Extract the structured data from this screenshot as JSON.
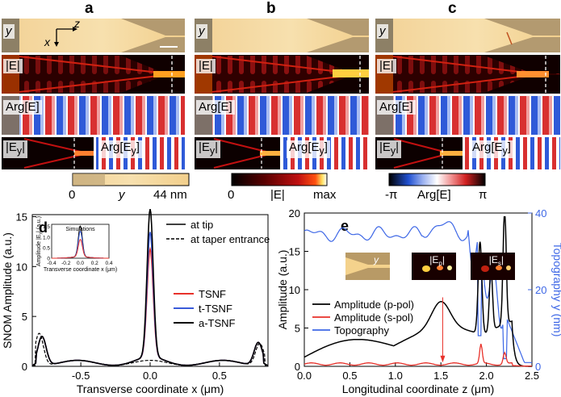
{
  "panel_letters": {
    "a": "a",
    "b": "b",
    "c": "c"
  },
  "map_labels": {
    "topo": "y",
    "absE": "|E|",
    "argE": "Arg[E]",
    "absEy": "|E",
    "argEy": "Arg[E",
    "y_sub": "y",
    "close_bar": "|",
    "close_br": "]"
  },
  "axes_labels": {
    "x": "x",
    "z": "z"
  },
  "colorbars": {
    "topo": {
      "min": "0",
      "mid": "y",
      "max": "44 nm"
    },
    "field": {
      "min": "0",
      "mid": "|E|",
      "max": "max"
    },
    "phase": {
      "min": "-π",
      "mid": "Arg[E]",
      "max": "π"
    }
  },
  "colors": {
    "red": "#e8312a",
    "blue": "#3a5bd9",
    "black": "#000000",
    "topo_line": "#3d67e6"
  },
  "chart_data": [
    {
      "panel": "d",
      "type": "line",
      "xlabel": "Transverse coordinate x (μm)",
      "ylabel": "SNOM Amplitude (a.u.)",
      "xlim": [
        -0.85,
        0.85
      ],
      "ylim": [
        0,
        15.2
      ],
      "xticks": [
        "-0.5",
        "0.0",
        "0.5"
      ],
      "yticks": [
        "0",
        "5",
        "10",
        "15"
      ],
      "legend_style": [
        {
          "name": "at tip",
          "style": "solid"
        },
        {
          "name": "at taper entrance",
          "style": "dashed"
        }
      ],
      "series": [
        {
          "name": "TSNF",
          "color": "#e8312a",
          "peak": 10.8
        },
        {
          "name": "t-TSNF",
          "color": "#3a5bd9",
          "peak": 12.5
        },
        {
          "name": "a-TSNF",
          "color": "#000000",
          "peak": 14.8
        }
      ],
      "inset": {
        "title": "Simulations",
        "xlabel": "Transverse coordinate x (μm)",
        "ylabel": "Amplitude |E",
        "ylabel_tail": "| (a.u.)",
        "xticks": [
          "-0.4",
          "-0.2",
          "0.0",
          "0.2",
          "0.4"
        ],
        "yticks": [
          "0",
          "0.5",
          "1.0",
          "1.5"
        ],
        "peaks": [
          1.45,
          1.2,
          0.82
        ]
      }
    },
    {
      "panel": "e",
      "type": "line",
      "xlabel": "Longitudinal coordinate z (μm)",
      "ylabel": "Amplitude (a.u.)",
      "y2label": "Topography y (nm)",
      "xlim": [
        0,
        2.5
      ],
      "ylim": [
        0,
        20
      ],
      "y2lim": [
        0,
        40
      ],
      "xticks": [
        "0.0",
        "0.5",
        "1.0",
        "1.5",
        "2.0",
        "2.5"
      ],
      "yticks": [
        "0",
        "5",
        "10",
        "15",
        "20"
      ],
      "y2ticks": [
        "0",
        "20",
        "40"
      ],
      "series": [
        {
          "name": "Amplitude (p-pol)",
          "color": "#000000"
        },
        {
          "name": "Amplitude (s-pol)",
          "color": "#e8312a"
        },
        {
          "name": "Topography",
          "color": "#3d67e6"
        }
      ],
      "inset_labels": [
        "y",
        "|E",
        "|E"
      ],
      "inset_subs": [
        "",
        "p",
        "s"
      ]
    }
  ]
}
